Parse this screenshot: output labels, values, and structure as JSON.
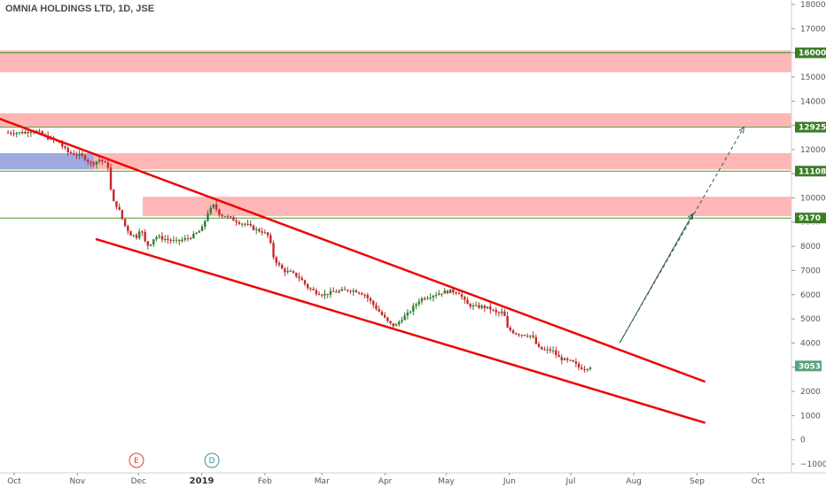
{
  "header": {
    "title": "OMNIA HOLDINGS LTD, 1D, JSE"
  },
  "colors": {
    "zone": "#ff9e9e",
    "zone_blue": "#8ea9e8",
    "channel": "#f00000",
    "level_line": "#4e9a2f",
    "level_badge": "#3d7d27",
    "last_badge": "#5aa27a",
    "candle_up": "#2e7d32",
    "candle_down": "#c62828",
    "arrow": "#2f5e4e",
    "event_e": "#e53935",
    "event_d": "#3a8fa0",
    "axis_text": "#555555"
  },
  "chart_data": {
    "type": "candlestick",
    "title": "OMNIA HOLDINGS LTD, 1D, JSE",
    "y_axis": {
      "ylim": [
        -1200,
        18200
      ],
      "ticks": [
        "18000",
        "17000",
        "16000",
        "15000",
        "14000",
        "13000",
        "12000",
        "11000",
        "10000",
        "9000",
        "8000",
        "7000",
        "6000",
        "5000",
        "4000",
        "3000",
        "2000",
        "1000",
        "0",
        "−1000"
      ]
    },
    "x_axis": {
      "months": [
        {
          "label": "Oct",
          "day": 0,
          "bold": false
        },
        {
          "label": "Nov",
          "day": 31,
          "bold": false
        },
        {
          "label": "Dec",
          "day": 61,
          "bold": false
        },
        {
          "label": "2019",
          "day": 92,
          "bold": true
        },
        {
          "label": "Feb",
          "day": 123,
          "bold": false
        },
        {
          "label": "Mar",
          "day": 151,
          "bold": false
        },
        {
          "label": "Apr",
          "day": 182,
          "bold": false
        },
        {
          "label": "May",
          "day": 212,
          "bold": false
        },
        {
          "label": "Jun",
          "day": 243,
          "bold": false
        },
        {
          "label": "Jul",
          "day": 273,
          "bold": false
        },
        {
          "label": "Aug",
          "day": 304,
          "bold": false
        },
        {
          "label": "Sep",
          "day": 335,
          "bold": false
        },
        {
          "label": "Oct",
          "day": 365,
          "bold": false
        }
      ]
    },
    "close_path": [
      [
        -3,
        12700
      ],
      [
        4,
        12700
      ],
      [
        10,
        12800
      ],
      [
        16,
        12500
      ],
      [
        22,
        12300
      ],
      [
        26,
        11900
      ],
      [
        30,
        11800
      ],
      [
        34,
        11700
      ],
      [
        38,
        11400
      ],
      [
        42,
        11600
      ],
      [
        46,
        11300
      ],
      [
        48,
        9900
      ],
      [
        51,
        9600
      ],
      [
        54,
        8900
      ],
      [
        57,
        8500
      ],
      [
        60,
        8400
      ],
      [
        62,
        8800
      ],
      [
        64,
        8200
      ],
      [
        66,
        8000
      ],
      [
        69,
        8400
      ],
      [
        72,
        8350
      ],
      [
        76,
        8250
      ],
      [
        80,
        8200
      ],
      [
        84,
        8300
      ],
      [
        88,
        8450
      ],
      [
        92,
        8700
      ],
      [
        95,
        9400
      ],
      [
        98,
        9700
      ],
      [
        101,
        9300
      ],
      [
        105,
        9200
      ],
      [
        110,
        9000
      ],
      [
        114,
        8900
      ],
      [
        118,
        8700
      ],
      [
        122,
        8600
      ],
      [
        125,
        8400
      ],
      [
        127,
        7600
      ],
      [
        129,
        7300
      ],
      [
        132,
        7000
      ],
      [
        136,
        6900
      ],
      [
        140,
        6700
      ],
      [
        144,
        6300
      ],
      [
        148,
        6100
      ],
      [
        152,
        6000
      ],
      [
        156,
        6100
      ],
      [
        160,
        6150
      ],
      [
        164,
        6200
      ],
      [
        168,
        6150
      ],
      [
        172,
        6000
      ],
      [
        176,
        5600
      ],
      [
        180,
        5200
      ],
      [
        184,
        4800
      ],
      [
        187,
        4700
      ],
      [
        190,
        5000
      ],
      [
        193,
        5200
      ],
      [
        196,
        5500
      ],
      [
        199,
        5800
      ],
      [
        202,
        5900
      ],
      [
        206,
        6000
      ],
      [
        210,
        6100
      ],
      [
        214,
        6150
      ],
      [
        218,
        6100
      ],
      [
        222,
        5600
      ],
      [
        226,
        5500
      ],
      [
        230,
        5500
      ],
      [
        234,
        5400
      ],
      [
        237,
        5200
      ],
      [
        240,
        5300
      ],
      [
        242,
        4600
      ],
      [
        246,
        4400
      ],
      [
        250,
        4350
      ],
      [
        254,
        4300
      ],
      [
        257,
        3800
      ],
      [
        260,
        3700
      ],
      [
        264,
        3700
      ],
      [
        267,
        3400
      ],
      [
        270,
        3300
      ],
      [
        274,
        3200
      ],
      [
        277,
        3000
      ],
      [
        280,
        2950
      ],
      [
        283,
        3053
      ]
    ],
    "resistance_zones": [
      {
        "from": 15200,
        "to": 16100,
        "start_day": -9
      },
      {
        "from": 12950,
        "to": 13500,
        "start_day": -9
      },
      {
        "from": 11180,
        "to": 11850,
        "start_day": -9
      },
      {
        "from": 9250,
        "to": 10050,
        "start_day": 63
      }
    ],
    "support_zone_blue": {
      "from": 11180,
      "to": 11850,
      "start_day": -9,
      "end_day": 39
    },
    "levels": [
      {
        "value": 16000,
        "label": "16000"
      },
      {
        "value": 12925,
        "label": "12925"
      },
      {
        "value": 11108,
        "label": "11108"
      },
      {
        "value": 9170,
        "label": "9170"
      }
    ],
    "last_price": {
      "value": 3053,
      "label": "3053"
    },
    "channel_upper": [
      [
        -8,
        13300
      ],
      [
        339,
        2400
      ]
    ],
    "channel_lower": [
      [
        40,
        8300
      ],
      [
        339,
        700
      ]
    ],
    "projection_solid": [
      [
        297,
        4000
      ],
      [
        333,
        9350
      ]
    ],
    "projection_dashed": [
      [
        297,
        4000
      ],
      [
        358,
        12925
      ]
    ],
    "events": [
      {
        "label": "E",
        "day": 60
      },
      {
        "label": "D",
        "day": 97
      }
    ]
  }
}
